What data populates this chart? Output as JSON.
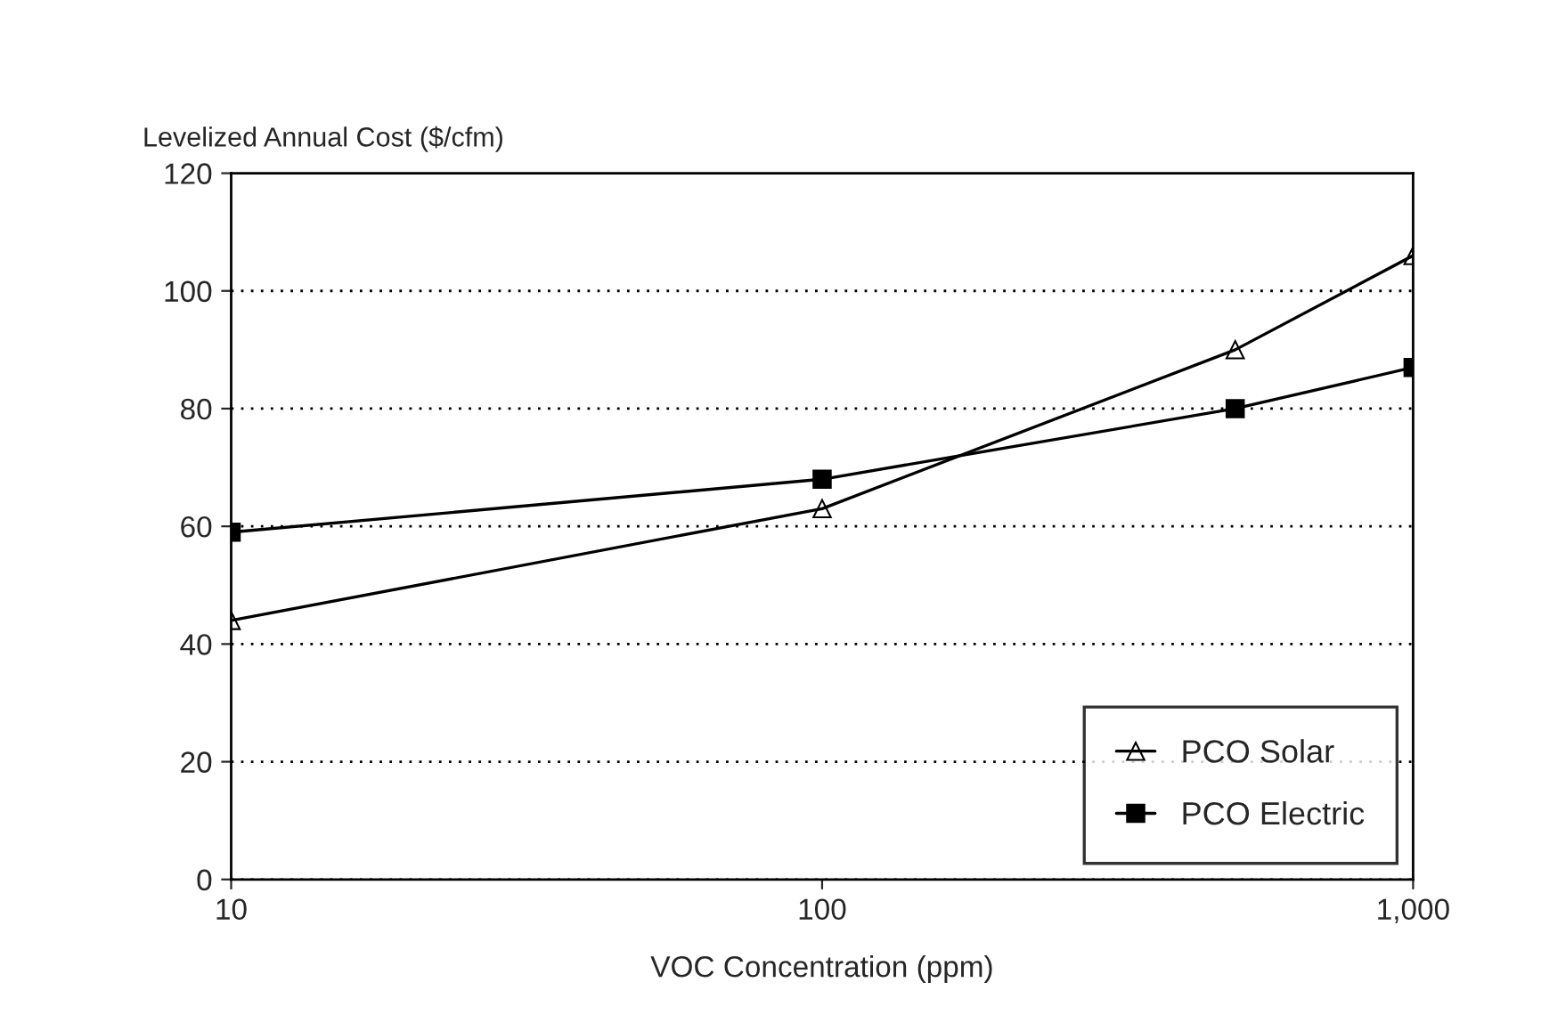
{
  "chart_data": {
    "type": "line",
    "xlabel": "VOC Concentration (ppm)",
    "ylabel": "Levelized Annual Cost ($/cfm)",
    "x": [
      10,
      100,
      500,
      1000
    ],
    "series": [
      {
        "name": "PCO Solar",
        "color": "#000000",
        "marker": "triangle",
        "values": [
          44,
          63,
          90,
          106
        ]
      },
      {
        "name": "PCO Electric",
        "color": "#000000",
        "marker": "square",
        "values": [
          59,
          68,
          80,
          87
        ]
      }
    ],
    "log": "x",
    "xlim": [
      10,
      1000
    ],
    "xticks": [
      10,
      100,
      {
        "value": 1000,
        "label": "1,000"
      }
    ],
    "ylim": [
      0,
      120
    ],
    "yticks": [
      0,
      20,
      40,
      60,
      80,
      100,
      120
    ],
    "grid": "y",
    "line_style": "solid",
    "legend": "bottom right"
  }
}
